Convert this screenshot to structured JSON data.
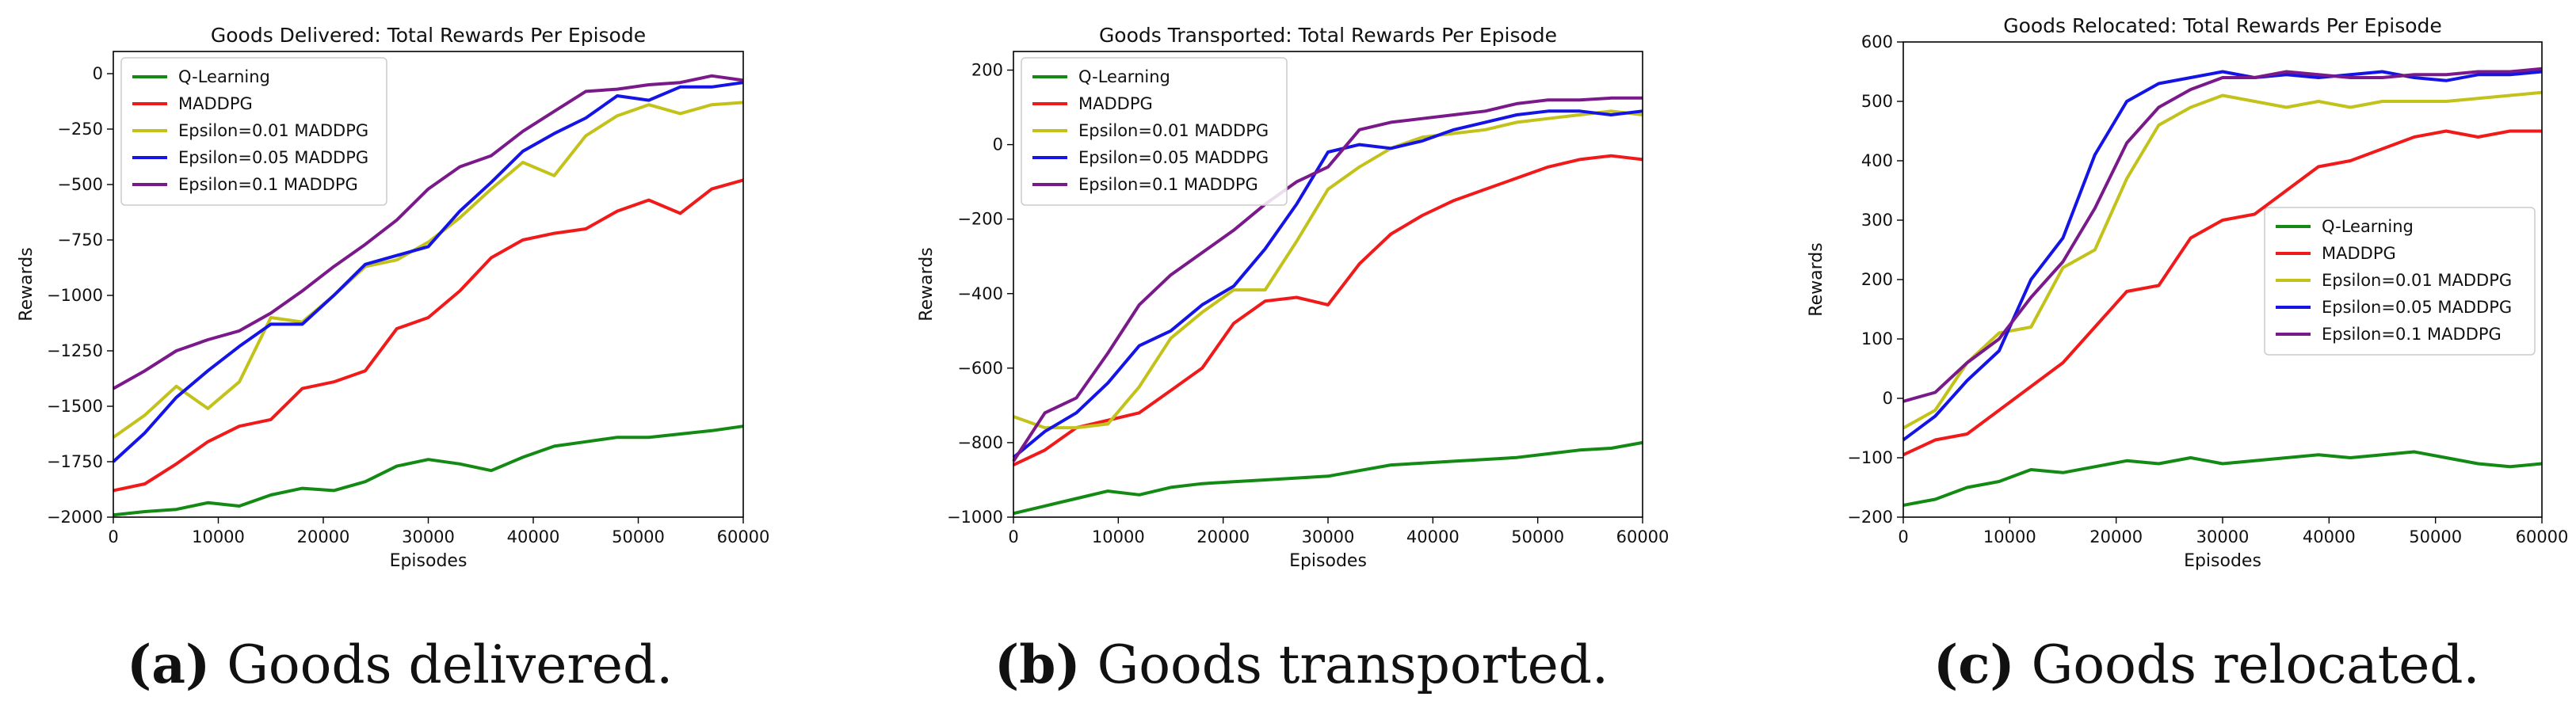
{
  "chart_data": [
    {
      "type": "line",
      "title": "Goods Delivered: Total Rewards Per Episode",
      "xlabel": "Episodes",
      "ylabel": "Rewards",
      "xlim": [
        0,
        60000
      ],
      "ylim": [
        -2000,
        100
      ],
      "xticks": [
        "0",
        "10000",
        "20000",
        "30000",
        "40000",
        "50000",
        "60000"
      ],
      "yticks": [
        "0",
        "−250",
        "−500",
        "−750",
        "−1000",
        "−1250",
        "−1500",
        "−1750",
        "−2000"
      ],
      "ytick_values": [
        0,
        -250,
        -500,
        -750,
        -1000,
        -1250,
        -1500,
        -1750,
        -2000
      ],
      "legend_position": "upper-left",
      "caption_letter": "(a)",
      "caption_text": " Goods delivered.",
      "x": [
        0,
        3000,
        6000,
        9000,
        12000,
        15000,
        18000,
        21000,
        24000,
        27000,
        30000,
        33000,
        36000,
        39000,
        42000,
        45000,
        48000,
        51000,
        54000,
        57000,
        60000
      ],
      "series": [
        {
          "name": "Q-Learning",
          "color": "#138a13",
          "values": [
            -1990,
            -1975,
            -1965,
            -1935,
            -1950,
            -1900,
            -1870,
            -1880,
            -1840,
            -1770,
            -1740,
            -1760,
            -1790,
            -1730,
            -1680,
            -1660,
            -1640,
            -1640,
            -1625,
            -1610,
            -1590
          ]
        },
        {
          "name": "MADDPG",
          "color": "#f11a1a",
          "values": [
            -1880,
            -1850,
            -1760,
            -1660,
            -1590,
            -1560,
            -1420,
            -1390,
            -1340,
            -1150,
            -1100,
            -980,
            -830,
            -750,
            -720,
            -700,
            -620,
            -570,
            -630,
            -520,
            -480
          ]
        },
        {
          "name": "Epsilon=0.01 MADDPG",
          "color": "#c2c21b",
          "values": [
            -1640,
            -1540,
            -1410,
            -1510,
            -1390,
            -1100,
            -1120,
            -1000,
            -870,
            -840,
            -760,
            -650,
            -520,
            -400,
            -460,
            -280,
            -190,
            -140,
            -180,
            -140,
            -130
          ]
        },
        {
          "name": "Epsilon=0.05 MADDPG",
          "color": "#1414e6",
          "values": [
            -1750,
            -1620,
            -1460,
            -1340,
            -1230,
            -1130,
            -1130,
            -1000,
            -860,
            -820,
            -780,
            -620,
            -490,
            -350,
            -270,
            -200,
            -100,
            -120,
            -60,
            -60,
            -40
          ]
        },
        {
          "name": "Epsilon=0.1  MADDPG",
          "color": "#7a1a8a",
          "values": [
            -1420,
            -1340,
            -1250,
            -1200,
            -1160,
            -1080,
            -980,
            -870,
            -770,
            -660,
            -520,
            -420,
            -370,
            -260,
            -170,
            -80,
            -70,
            -50,
            -40,
            -10,
            -30
          ]
        }
      ]
    },
    {
      "type": "line",
      "title": "Goods Transported: Total Rewards Per Episode",
      "xlabel": "Episodes",
      "ylabel": "Rewards",
      "xlim": [
        0,
        60000
      ],
      "ylim": [
        -1000,
        250
      ],
      "xticks": [
        "0",
        "10000",
        "20000",
        "30000",
        "40000",
        "50000",
        "60000"
      ],
      "yticks": [
        "200",
        "0",
        "−200",
        "−400",
        "−600",
        "−800",
        "−1000"
      ],
      "ytick_values": [
        200,
        0,
        -200,
        -400,
        -600,
        -800,
        -1000
      ],
      "legend_position": "upper-left",
      "caption_letter": "(b)",
      "caption_text": " Goods transported.",
      "x": [
        0,
        3000,
        6000,
        9000,
        12000,
        15000,
        18000,
        21000,
        24000,
        27000,
        30000,
        33000,
        36000,
        39000,
        42000,
        45000,
        48000,
        51000,
        54000,
        57000,
        60000
      ],
      "series": [
        {
          "name": "Q-Learning",
          "color": "#138a13",
          "values": [
            -990,
            -970,
            -950,
            -930,
            -940,
            -920,
            -910,
            -905,
            -900,
            -895,
            -890,
            -875,
            -860,
            -855,
            -850,
            -845,
            -840,
            -830,
            -820,
            -815,
            -800
          ]
        },
        {
          "name": "MADDPG",
          "color": "#f11a1a",
          "values": [
            -860,
            -820,
            -760,
            -740,
            -720,
            -660,
            -600,
            -480,
            -420,
            -410,
            -430,
            -320,
            -240,
            -190,
            -150,
            -120,
            -90,
            -60,
            -40,
            -30,
            -40
          ]
        },
        {
          "name": "Epsilon=0.01 MADDPG",
          "color": "#c2c21b",
          "values": [
            -730,
            -760,
            -760,
            -750,
            -650,
            -520,
            -450,
            -390,
            -390,
            -260,
            -120,
            -60,
            -10,
            20,
            30,
            40,
            60,
            70,
            80,
            90,
            80
          ]
        },
        {
          "name": "Epsilon=0.05 MADDPG",
          "color": "#1414e6",
          "values": [
            -840,
            -770,
            -720,
            -640,
            -540,
            -500,
            -430,
            -380,
            -280,
            -160,
            -20,
            0,
            -10,
            10,
            40,
            60,
            80,
            90,
            90,
            80,
            90
          ]
        },
        {
          "name": "Epsilon=0.1  MADDPG",
          "color": "#7a1a8a",
          "values": [
            -850,
            -720,
            -680,
            -560,
            -430,
            -350,
            -290,
            -230,
            -160,
            -100,
            -60,
            40,
            60,
            70,
            80,
            90,
            110,
            120,
            120,
            125,
            125
          ]
        }
      ]
    },
    {
      "type": "line",
      "title": "Goods Relocated: Total Rewards Per Episode",
      "xlabel": "Episodes",
      "ylabel": "Rewards",
      "xlim": [
        0,
        60000
      ],
      "ylim": [
        -200,
        600
      ],
      "xticks": [
        "0",
        "10000",
        "20000",
        "30000",
        "40000",
        "50000",
        "60000"
      ],
      "yticks": [
        "600",
        "500",
        "400",
        "300",
        "200",
        "100",
        "0",
        "−100",
        "−200"
      ],
      "ytick_values": [
        600,
        500,
        400,
        300,
        200,
        100,
        0,
        -100,
        -200
      ],
      "legend_position": "center-right",
      "caption_letter": "(c)",
      "caption_text": " Goods relocated.",
      "x": [
        0,
        3000,
        6000,
        9000,
        12000,
        15000,
        18000,
        21000,
        24000,
        27000,
        30000,
        33000,
        36000,
        39000,
        42000,
        45000,
        48000,
        51000,
        54000,
        57000,
        60000
      ],
      "series": [
        {
          "name": "Q-Learning",
          "color": "#138a13",
          "values": [
            -180,
            -170,
            -150,
            -140,
            -120,
            -125,
            -115,
            -105,
            -110,
            -100,
            -110,
            -105,
            -100,
            -95,
            -100,
            -95,
            -90,
            -100,
            -110,
            -115,
            -110
          ]
        },
        {
          "name": "MADDPG",
          "color": "#f11a1a",
          "values": [
            -95,
            -70,
            -60,
            -20,
            20,
            60,
            120,
            180,
            190,
            270,
            300,
            310,
            350,
            390,
            400,
            420,
            440,
            450,
            440,
            450,
            450
          ]
        },
        {
          "name": "Epsilon=0.01 MADDPG",
          "color": "#c2c21b",
          "values": [
            -50,
            -20,
            60,
            110,
            120,
            220,
            250,
            370,
            460,
            490,
            510,
            500,
            490,
            500,
            490,
            500,
            500,
            500,
            505,
            510,
            515
          ]
        },
        {
          "name": "Epsilon=0.05 MADDPG",
          "color": "#1414e6",
          "values": [
            -70,
            -30,
            30,
            80,
            200,
            270,
            410,
            500,
            530,
            540,
            550,
            540,
            545,
            540,
            545,
            550,
            540,
            535,
            545,
            545,
            550
          ]
        },
        {
          "name": "Epsilon=0.1  MADDPG",
          "color": "#7a1a8a",
          "values": [
            -5,
            10,
            60,
            100,
            170,
            230,
            320,
            430,
            490,
            520,
            540,
            540,
            550,
            545,
            540,
            540,
            545,
            545,
            550,
            550,
            555
          ]
        }
      ]
    }
  ]
}
